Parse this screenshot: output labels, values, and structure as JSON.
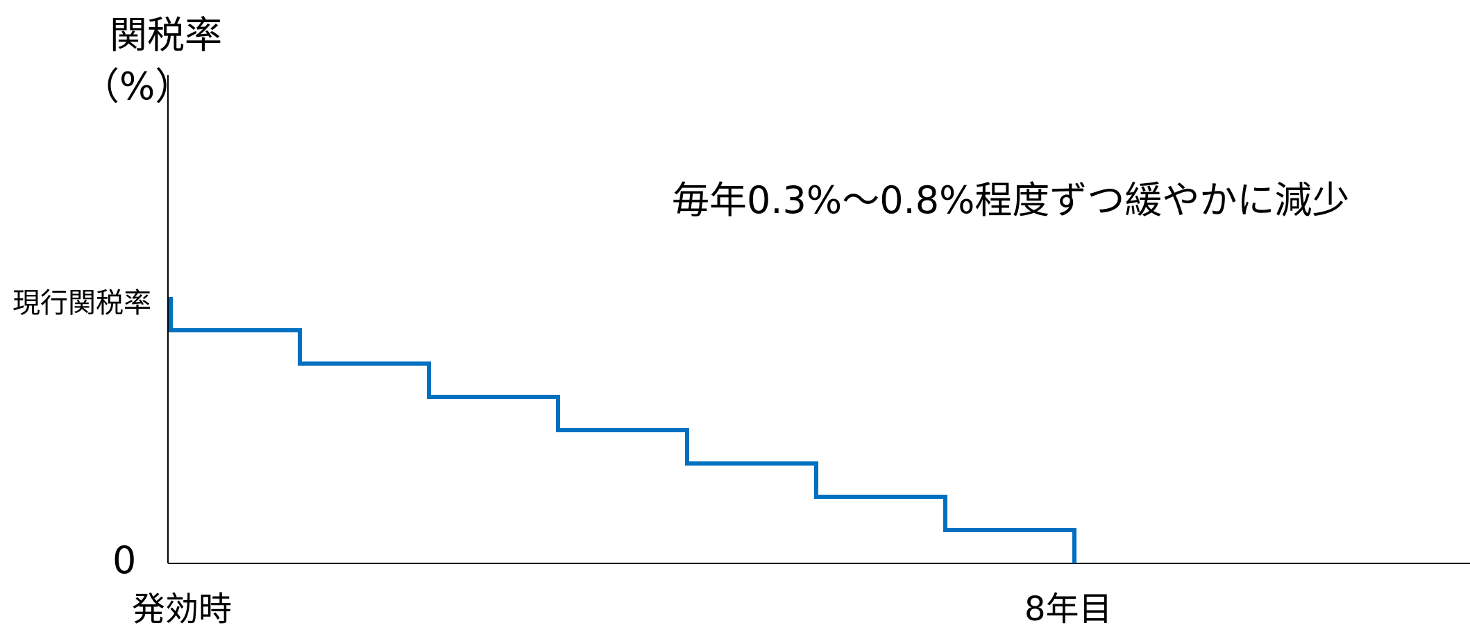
{
  "chart_data": {
    "type": "line",
    "step": true,
    "title": "",
    "ylabel": [
      "関税率",
      "（%）"
    ],
    "y_tick_labels": {
      "current_rate": "現行関税率",
      "zero": "0"
    },
    "x_tick_labels": {
      "start": "発効時",
      "end": "8年目"
    },
    "annotation": "毎年0.3%～0.8%程度ずつ緩やかに減少",
    "x": [
      0,
      1,
      2,
      3,
      4,
      5,
      6,
      7
    ],
    "ylim": [
      0,
      1
    ],
    "series": [
      {
        "values": [
          0.875,
          0.75,
          0.625,
          0.5,
          0.375,
          0.25,
          0.125,
          0
        ],
        "start_value": 1.0,
        "color": "#0070C0"
      }
    ],
    "grid": false,
    "legend": "none",
    "axis_color": "#000000"
  }
}
